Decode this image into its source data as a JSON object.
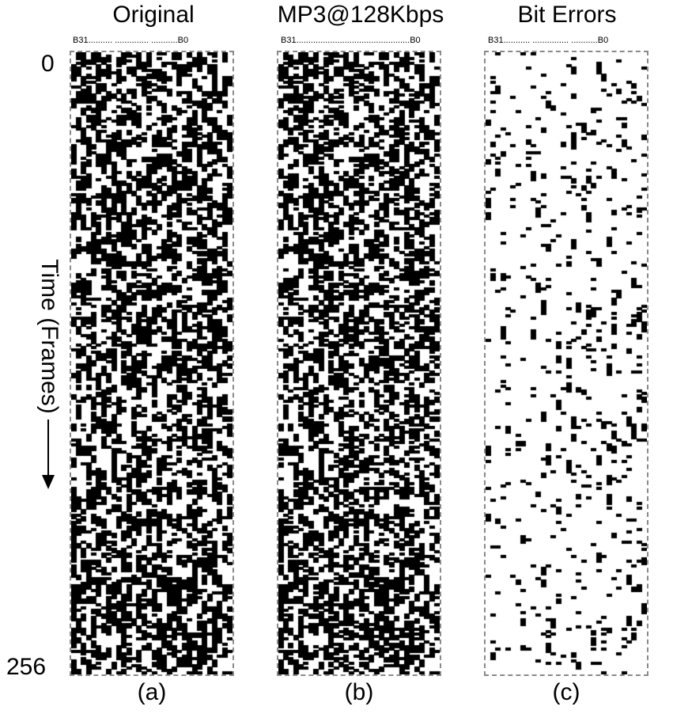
{
  "titles": {
    "a": "Original",
    "b": "MP3@128Kbps",
    "c": "Bit Errors"
  },
  "bit_labels": {
    "a": "B31.......... .............. ...........B0",
    "b": "B31...............................................B0",
    "c": "B31........... ............... ...........B0"
  },
  "captions": {
    "a": "(a)",
    "b": "(b)",
    "c": "(c)"
  },
  "y_axis": {
    "label": "Time (Frames)",
    "start": "0",
    "end": "256"
  },
  "grid": {
    "bits": 32,
    "frames": 256,
    "colors": {
      "on": "#000000",
      "off": "#ffffff",
      "border": "#8a8a8a"
    }
  }
}
